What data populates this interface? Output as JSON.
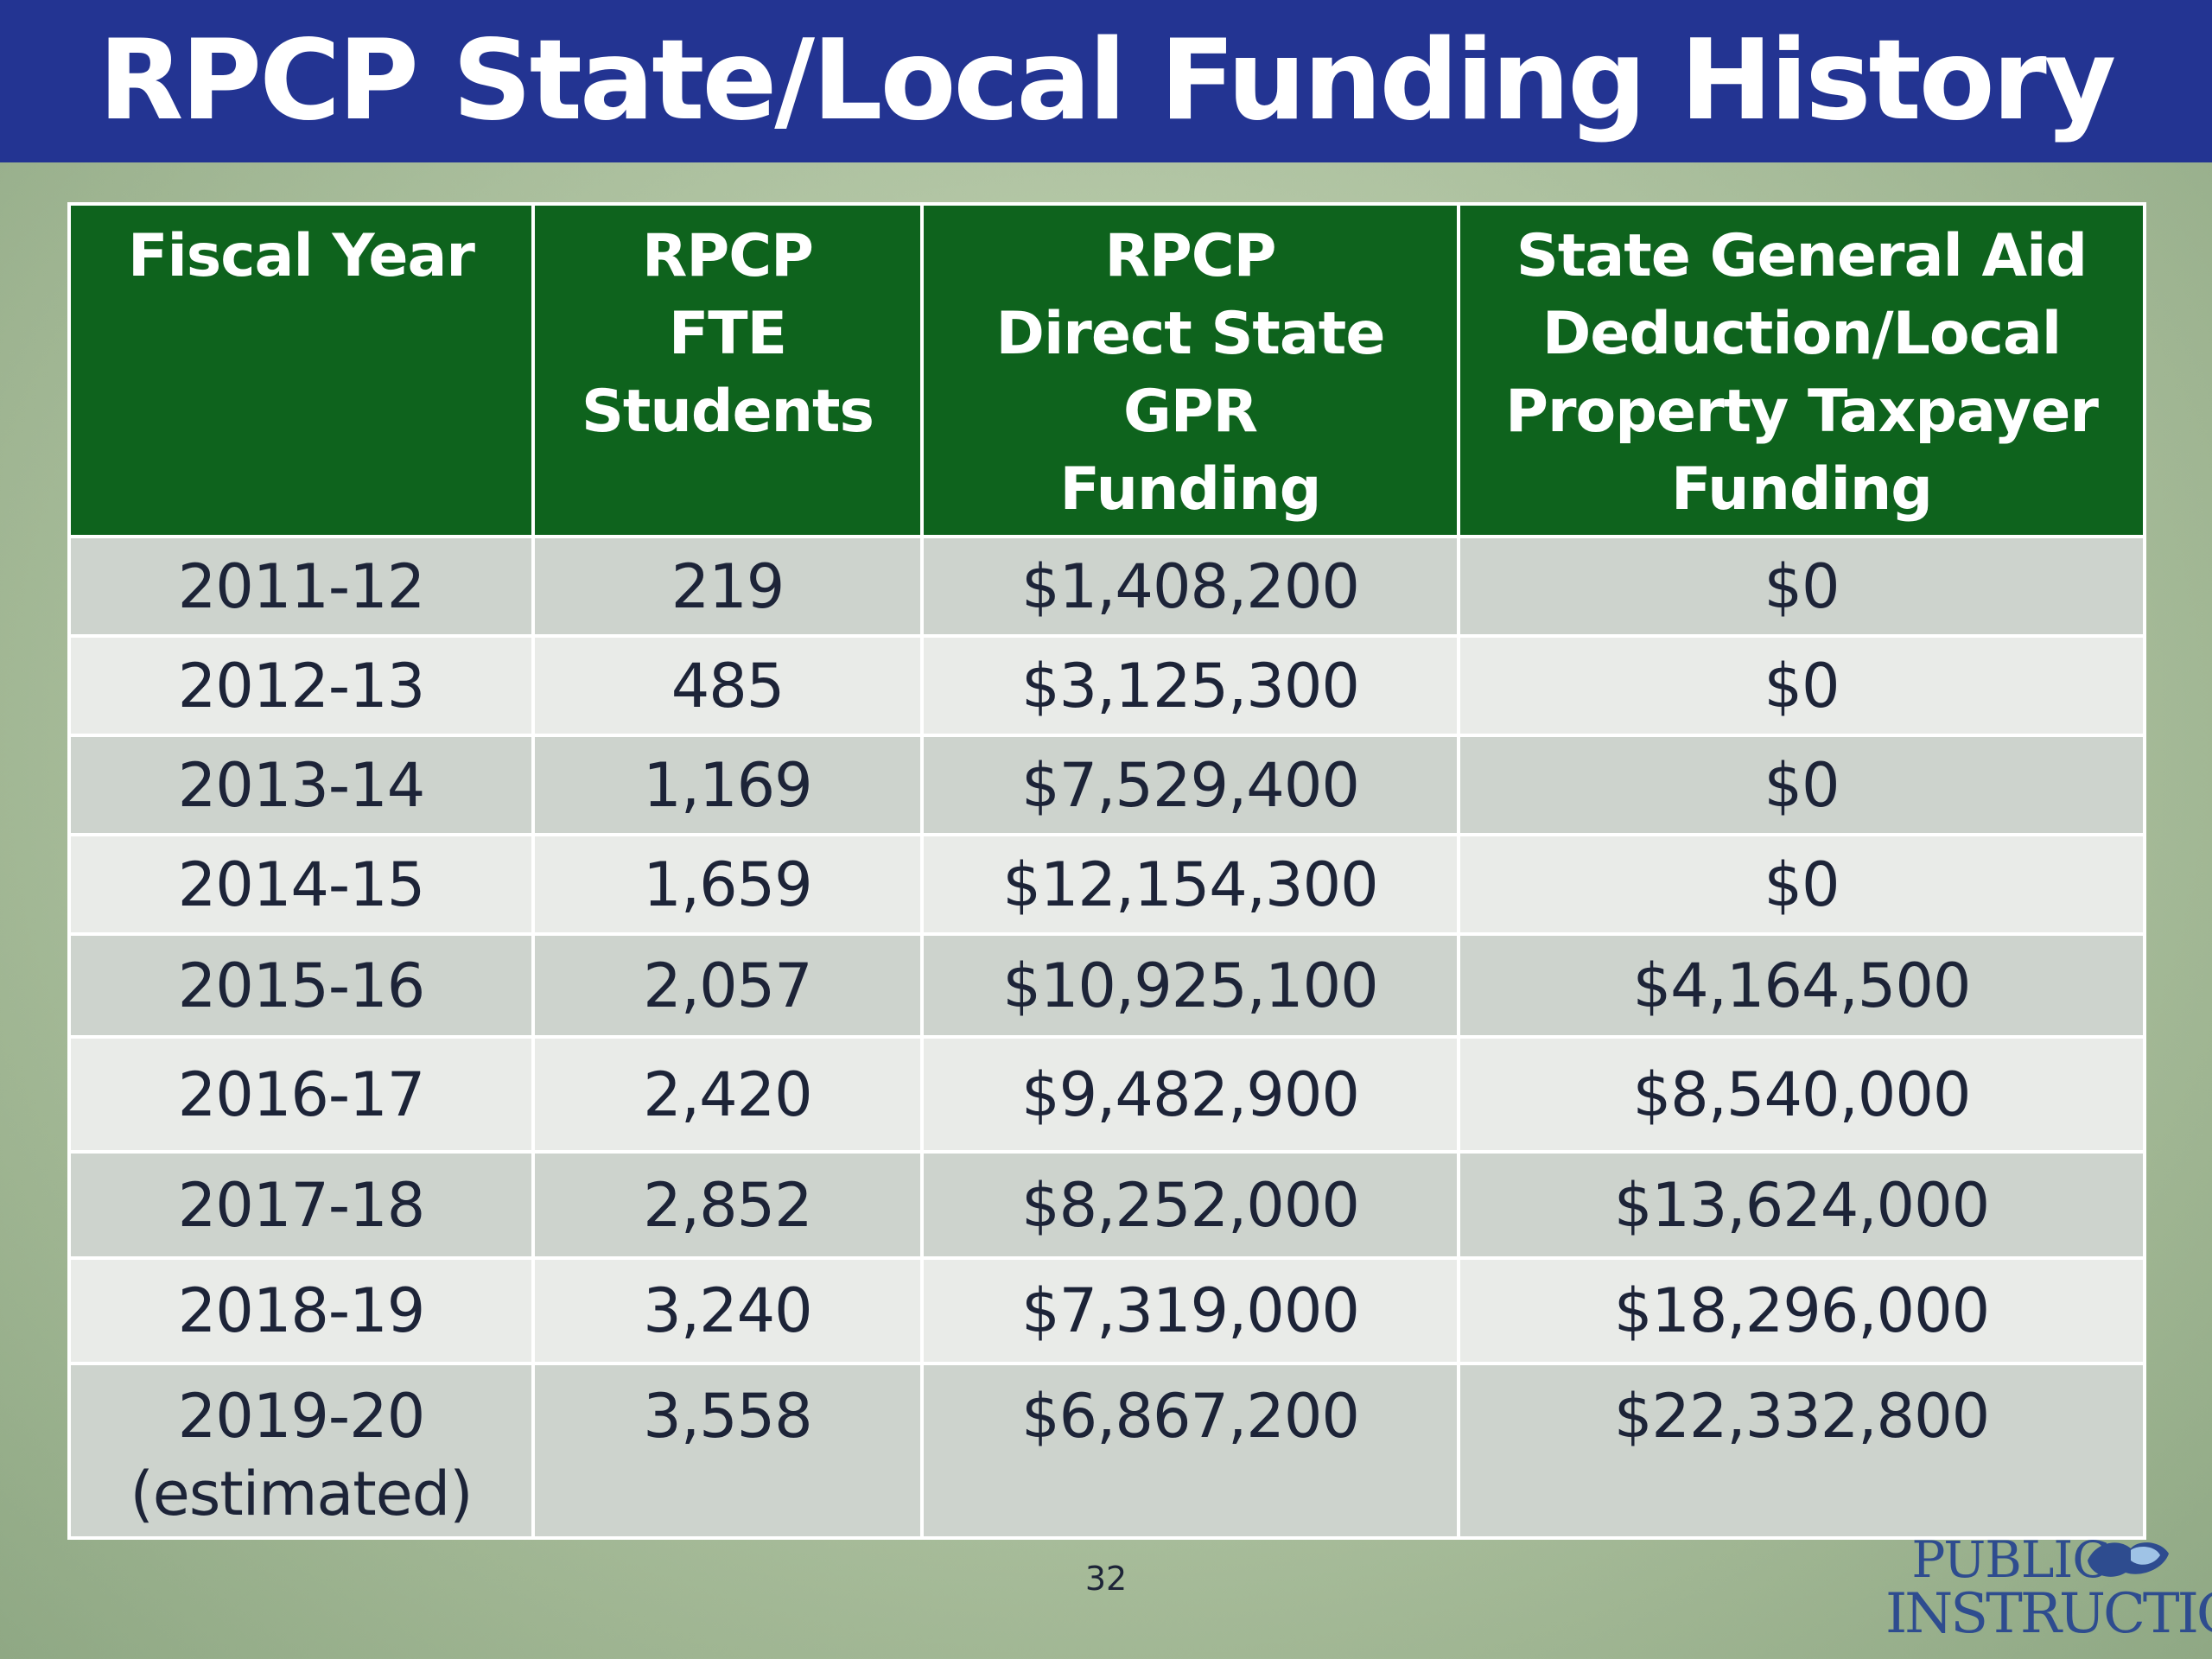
{
  "title": "RPCP State/Local Funding History",
  "table": {
    "headers": [
      [
        "Fiscal Year"
      ],
      [
        "RPCP",
        "FTE",
        "Students"
      ],
      [
        "RPCP",
        "Direct State GPR",
        "Funding"
      ],
      [
        "State General Aid",
        "Deduction/Local",
        "Property Taxpayer",
        "Funding"
      ]
    ],
    "rows": [
      {
        "year": [
          "2011-12"
        ],
        "fte": "219",
        "gpr": "$1,408,200",
        "local": "$0"
      },
      {
        "year": [
          "2012-13"
        ],
        "fte": "485",
        "gpr": "$3,125,300",
        "local": "$0"
      },
      {
        "year": [
          "2013-14"
        ],
        "fte": "1,169",
        "gpr": "$7,529,400",
        "local": "$0"
      },
      {
        "year": [
          "2014-15"
        ],
        "fte": "1,659",
        "gpr": "$12,154,300",
        "local": "$0"
      },
      {
        "year": [
          "2015-16"
        ],
        "fte": "2,057",
        "gpr": "$10,925,100",
        "local": "$4,164,500"
      },
      {
        "year": [
          "2016-17"
        ],
        "fte": "2,420",
        "gpr": "$9,482,900",
        "local": "$8,540,000"
      },
      {
        "year": [
          "2017-18"
        ],
        "fte": "2,852",
        "gpr": "$8,252,000",
        "local": "$13,624,000"
      },
      {
        "year": [
          "2018-19"
        ],
        "fte": "3,240",
        "gpr": "$7,319,000",
        "local": "$18,296,000"
      },
      {
        "year": [
          "2019-20",
          "(estimated)"
        ],
        "fte": "3,558",
        "gpr": "$6,867,200",
        "local": "$22,332,800"
      }
    ]
  },
  "page_number": "32",
  "logo": {
    "line1": "PUBLIC",
    "line2": "INSTRUCTION"
  },
  "colors": {
    "title_bar": "#233492",
    "header_green": "#0e631d",
    "row_dark": "#cdd3cd",
    "row_light": "#e9ebe8",
    "logo_blue": "#2e4c8f"
  }
}
